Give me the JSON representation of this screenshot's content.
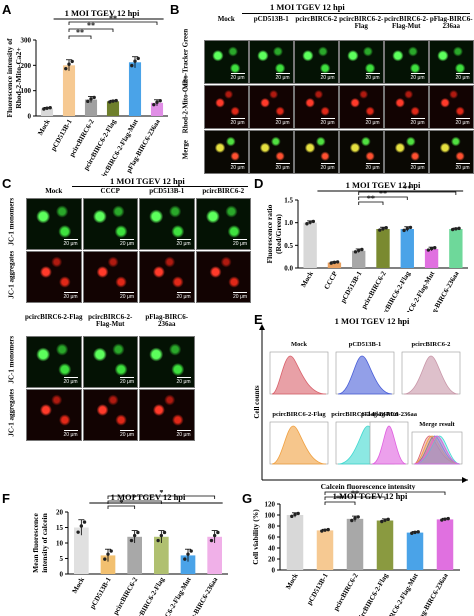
{
  "header": "1 MOI TGEV 12 hpi",
  "scale_bar": "20 μm",
  "panel_letters": [
    "A",
    "B",
    "C",
    "D",
    "E",
    "F",
    "G"
  ],
  "panelB": {
    "columns": [
      "Mock",
      "pCD513B-1",
      "pcircBIRC6-2",
      "pcircBIRC6-2-Flag",
      "pcircBIRC6-2-Flag-Mut",
      "pFlag-BIRC6-236aa"
    ],
    "rows": [
      "Mito-Tracker Green",
      "Rhod-2-Mito-Ca2+",
      "Merge"
    ]
  },
  "panelC": {
    "columns_top": [
      "Mock",
      "CCCP",
      "pCD513B-1",
      "pcircBIRC6-2"
    ],
    "columns_bottom": [
      "pcircBIRC6-2-Flag",
      "pcircBIRC6-2-Flag-Mut",
      "pFlag-BIRC6-236aa"
    ],
    "rows": [
      "JC-1 monomers",
      "JC-1 aggregates"
    ]
  },
  "panelE": {
    "labels": [
      "Mock",
      "pCD513B-1",
      "pcircBIRC6-2",
      "pcircBIRC6-2-Flag",
      "pcircBIRC6-2-Flag-Mut",
      "pFlag-BIRC6-236aa",
      "Merge result"
    ],
    "ylabel": "Cell counts",
    "xlabel": "Calcein fluorescence intensity",
    "colors": [
      "#d9606a",
      "#4a5fd8",
      "#c896a8",
      "#f0a040",
      "#40d8d0",
      "#e060e0"
    ]
  },
  "chart_data": [
    {
      "id": "A",
      "type": "bar",
      "ylabel": "Fluorescence intensity of Rhod-2-Mito-Ca2+",
      "ylim": [
        0,
        300
      ],
      "yticks": [
        0,
        100,
        200,
        300
      ],
      "categories": [
        "Mock",
        "pCD513B-1",
        "pcircBIRC6-2",
        "pcircBIRC6-2-Flag",
        "pcircBIRC6-2-Flag-Mut",
        "pFlag-BIRC6-236aa"
      ],
      "values": [
        30,
        200,
        65,
        58,
        212,
        52
      ],
      "errors": [
        4,
        22,
        12,
        4,
        22,
        12
      ],
      "colors": [
        "#d8d8d8",
        "#f6c992",
        "#a0a0a0",
        "#6e7f2c",
        "#4aa3e8",
        "#e08ee6"
      ],
      "significance": "**"
    },
    {
      "id": "D",
      "type": "bar",
      "ylabel": "Fluorescence ratio (Red/Green)",
      "ylim": [
        0,
        1.5
      ],
      "yticks": [
        0.0,
        0.5,
        1.0,
        1.5
      ],
      "categories": [
        "Mock",
        "CCCP",
        "pCD513B-1",
        "pcircBIRC6-2",
        "pcircBIRC6-2-Flag",
        "pcircBIRC6-2-Flag-Mut",
        "pFlag-BIRC6-236aa"
      ],
      "values": [
        1.0,
        0.12,
        0.38,
        0.86,
        0.86,
        0.42,
        0.86
      ],
      "errors": [
        0.04,
        0.02,
        0.04,
        0.04,
        0.05,
        0.04,
        0.02
      ],
      "colors": [
        "#d8d8d8",
        "#e8a060",
        "#a8a8a8",
        "#7a8a30",
        "#4aa3e8",
        "#e070e0",
        "#6ed89a"
      ],
      "significance": "**"
    },
    {
      "id": "F",
      "type": "bar",
      "ylabel": "Mean fluorescence intensity of calcein",
      "ylim": [
        0,
        20
      ],
      "yticks": [
        0,
        5,
        10,
        15,
        20
      ],
      "categories": [
        "Mock",
        "pCD513B-1",
        "pcircBIRC6-2",
        "pcircBIRC6-2-Flag",
        "pcircBIRC6-2-Flag-Mut",
        "pFlag-BIRC6-236aa"
      ],
      "values": [
        15,
        6,
        12,
        12,
        6,
        12
      ],
      "errors": [
        2.5,
        2.0,
        2.0,
        2.0,
        2.0,
        2.0
      ],
      "colors": [
        "#e0e0e0",
        "#f2c070",
        "#a8a8a8",
        "#b0c070",
        "#4aa3e8",
        "#f0b0e8"
      ],
      "significance": "*"
    },
    {
      "id": "G",
      "type": "bar",
      "ylabel": "Cell viability (%)",
      "ylim": [
        0,
        120
      ],
      "yticks": [
        0,
        20,
        40,
        60,
        80,
        100,
        120
      ],
      "categories": [
        "Mock",
        "pCD513B-1",
        "pcircBIRC6-2",
        "pcircBIRC6-2-Flag",
        "pcircBIRC6-2-Flag-Mut",
        "pFlag-BIRC6-236aa"
      ],
      "values": [
        100,
        72,
        93,
        90,
        68,
        92
      ],
      "errors": [
        4,
        2,
        5,
        3,
        2,
        2
      ],
      "colors": [
        "#d8d8d8",
        "#f6c992",
        "#a8a8a8",
        "#8a9a40",
        "#4aa3e8",
        "#e070e0"
      ],
      "significance": "**"
    }
  ]
}
